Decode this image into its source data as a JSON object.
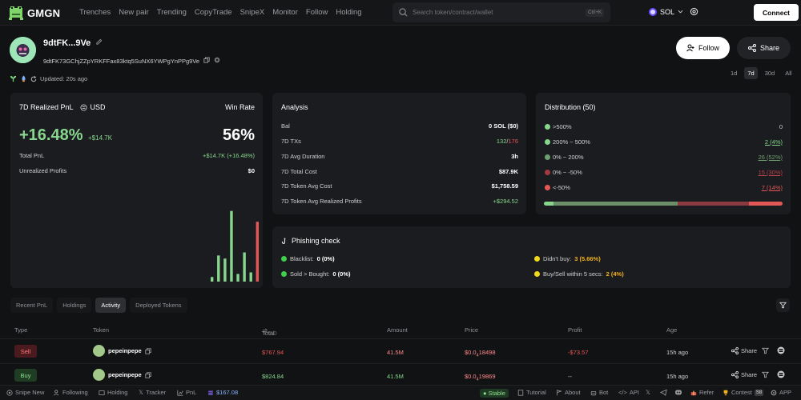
{
  "app": {
    "name": "GMGN"
  },
  "nav": [
    "Trenches",
    "New pair",
    "Trending",
    "CopyTrade",
    "SnipeX",
    "Monitor",
    "Follow",
    "Holding"
  ],
  "search": {
    "placeholder": "Search token/contract/wallet",
    "shortcut": "Ctrl+K"
  },
  "chain": {
    "name": "SOL"
  },
  "connect_label": "Connect",
  "profile": {
    "name": "9dtFK...9Ve",
    "address": "9dtFK73GChjZZpYRKFFax83ktq5SuNX6YWPgYnPPg9Ve",
    "updated": "Updated: 20s ago",
    "follow_label": "Follow",
    "share_label": "Share"
  },
  "periods": [
    {
      "label": "1d"
    },
    {
      "label": "7d",
      "active": true
    },
    {
      "label": "30d"
    },
    {
      "label": "All"
    }
  ],
  "pnl_card": {
    "title": "7D Realized PnL",
    "currency": "USD",
    "winrate_label": "Win Rate",
    "pnl_percent": "+16.48%",
    "pnl_value": "+$14.7K",
    "winrate": "56%",
    "total_pnl_label": "Total PnL",
    "total_pnl_value": "+$14.7K (+16.48%)",
    "unrealized_label": "Unrealized Profits",
    "unrealized_value": "$0"
  },
  "pnl_histogram": [
    {
      "value": 0.06,
      "color": "#86d68c"
    },
    {
      "value": 0.34,
      "color": "#86d68c"
    },
    {
      "value": 0.3,
      "color": "#86d68c"
    },
    {
      "value": 0.92,
      "color": "#86d68c"
    },
    {
      "value": 0.1,
      "color": "#86d68c"
    },
    {
      "value": 0.38,
      "color": "#86d68c"
    },
    {
      "value": 0.12,
      "color": "#86d68c"
    },
    {
      "value": 0.78,
      "color": "#e45757"
    }
  ],
  "analysis": {
    "title": "Analysis",
    "rows": [
      {
        "label": "Bal",
        "value": "0 SOL ($0)"
      },
      {
        "label": "7D TXs",
        "value_green": "132",
        "value_sep": "/",
        "value_red": "176"
      },
      {
        "label": "7D Avg Duration",
        "value": "3h"
      },
      {
        "label": "7D Total Cost",
        "value": "$87.9K"
      },
      {
        "label": "7D Token Avg Cost",
        "value": "$1,758.59"
      },
      {
        "label": "7D Token Avg Realized Profits",
        "value": "+$294.52",
        "green": true
      }
    ]
  },
  "distribution": {
    "title": "Distribution (50)",
    "rows": [
      {
        "label": ">500%",
        "value": "0",
        "color": "#86d68c",
        "vcolor": "#d0d0d0"
      },
      {
        "label": "200% ~ 500%",
        "value": "2 (4%)",
        "color": "#86d68c",
        "vcolor": "#86d68c"
      },
      {
        "label": "0% ~ 200%",
        "value": "26 (52%)",
        "color": "#6f9f70",
        "vcolor": "#6f9f70"
      },
      {
        "label": "0% ~ -50%",
        "value": "15 (30%)",
        "color": "#a33a42",
        "vcolor": "#b5434b"
      },
      {
        "label": "<-50%",
        "value": "7 (14%)",
        "color": "#e45757",
        "vcolor": "#e45757"
      }
    ],
    "bar": [
      {
        "share": 0.04,
        "color": "#86d68c"
      },
      {
        "share": 0.52,
        "color": "#6b8f68"
      },
      {
        "share": 0.3,
        "color": "#8a3a40"
      },
      {
        "share": 0.14,
        "color": "#e45757"
      }
    ]
  },
  "phishing": {
    "title": "Phishing check",
    "items": [
      {
        "label": "Blacklist:",
        "value": "0 (0%)",
        "color": "#3fcf4a",
        "vcolor": "#fff"
      },
      {
        "label": "Sold > Bought:",
        "value": "0 (0%)",
        "color": "#3fcf4a",
        "vcolor": "#fff"
      },
      {
        "label": "Didn't buy:",
        "value": "3 (5.66%)",
        "color": "#f2d81b",
        "vcolor": "#f2b01b"
      },
      {
        "label": "Buy/Sell within 5 secs:",
        "value": "2 (4%)",
        "color": "#f2d81b",
        "vcolor": "#f2b01b"
      }
    ]
  },
  "tabs": [
    {
      "label": "Recent PnL"
    },
    {
      "label": "Holdings"
    },
    {
      "label": "Activity",
      "active": true
    },
    {
      "label": "Deployed Tokens"
    }
  ],
  "table": {
    "headers": {
      "type": "Type",
      "token": "Token",
      "total": "Total",
      "total_unit": "USD",
      "amount": "Amount",
      "price": "Price",
      "profit": "Profit",
      "age": "Age"
    },
    "rows": [
      {
        "type": "Sell",
        "token": "pepeinpepe",
        "total": "$767.94",
        "amount": "41.5M",
        "price_prefix": "$0.0",
        "price_sub": "4",
        "price_rest": "18498",
        "profit": "-$73.57",
        "age": "15h ago",
        "share": "Share"
      },
      {
        "type": "Buy",
        "token": "pepeinpepe",
        "total": "$824.84",
        "amount": "41.5M",
        "price_prefix": "$0.0",
        "price_sub": "4",
        "price_rest": "19869",
        "profit": "--",
        "age": "15h ago",
        "share": "Share"
      }
    ]
  },
  "footer": {
    "items": [
      "Snipe New",
      "Following",
      "Holding",
      "Tracker",
      "PnL"
    ],
    "balance": "$167.08",
    "stable": "Stable",
    "right": [
      "Tutorial",
      "About",
      "Bot",
      "API",
      "Refer",
      "Contest",
      "APP"
    ],
    "contest_badge": "S8"
  }
}
